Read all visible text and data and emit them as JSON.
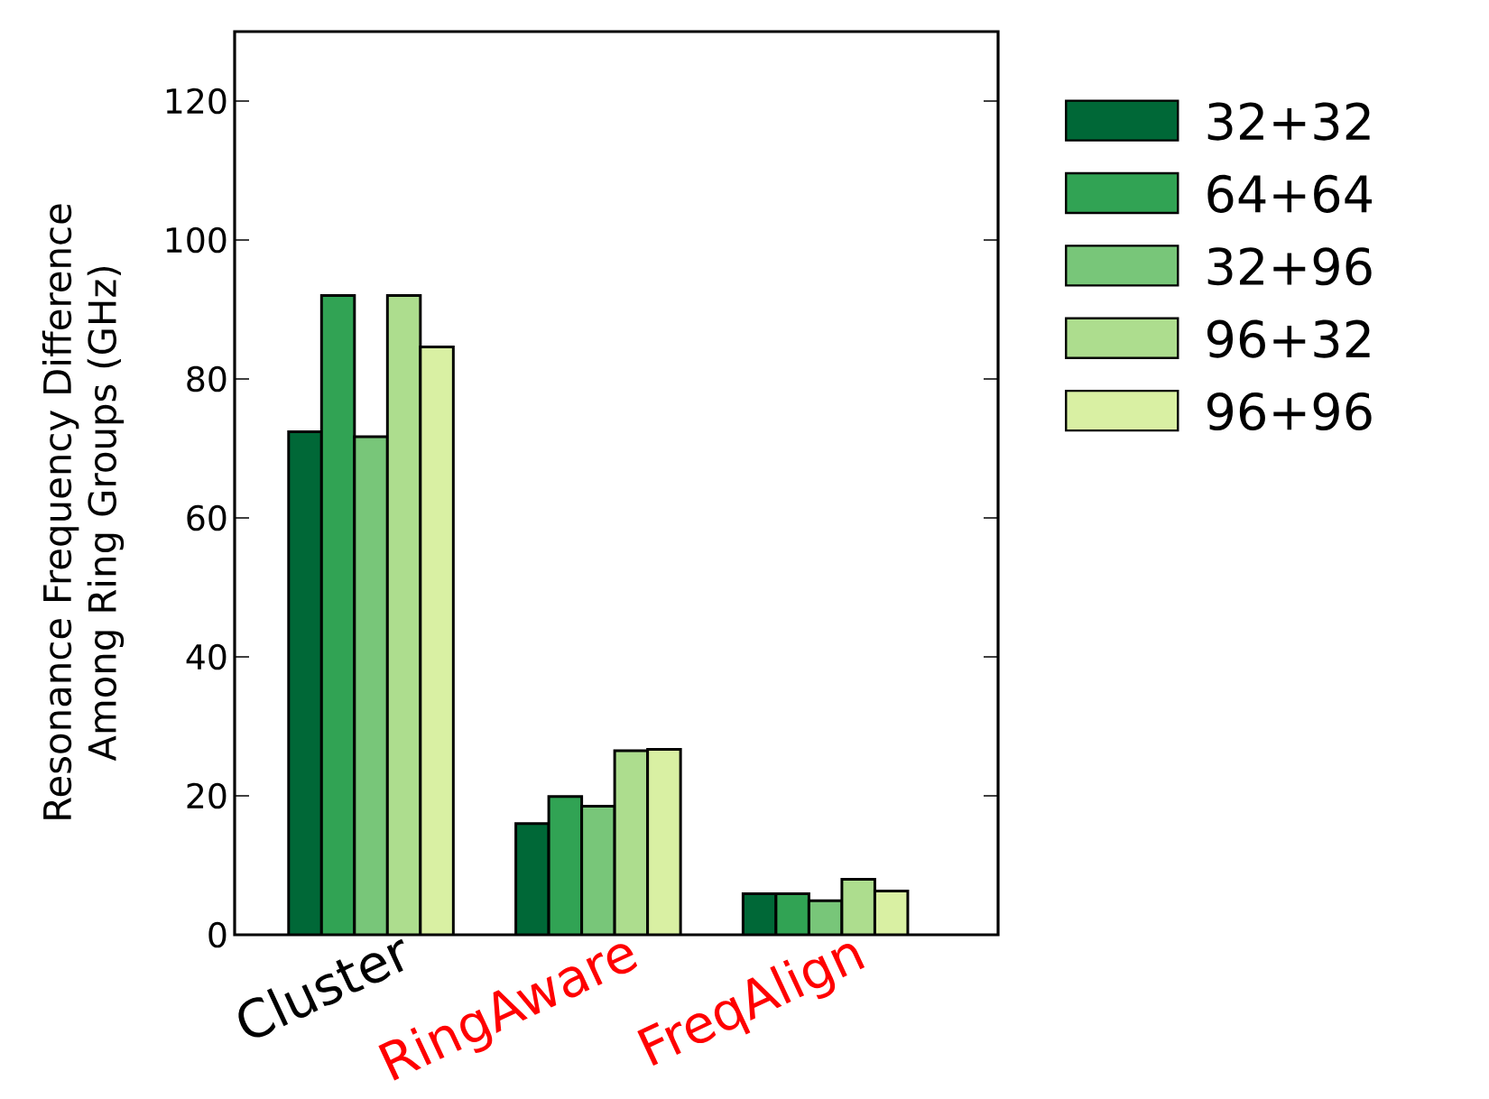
{
  "chart_data": {
    "type": "bar",
    "ylabel": "Resonance Frequency Difference Among Ring Groups (GHz)",
    "categories": [
      "Cluster",
      "RingAware",
      "FreqAlign"
    ],
    "series": [
      {
        "name": "32+32",
        "color": "#006837",
        "values": [
          72.4,
          16.0,
          5.9
        ]
      },
      {
        "name": "64+64",
        "color": "#31a354",
        "values": [
          92.0,
          19.9,
          5.9
        ]
      },
      {
        "name": "32+96",
        "color": "#78c679",
        "values": [
          71.7,
          18.5,
          4.9
        ]
      },
      {
        "name": "96+32",
        "color": "#addd8e",
        "values": [
          92.0,
          26.5,
          8.0
        ]
      },
      {
        "name": "96+96",
        "color": "#d9f0a3",
        "values": [
          84.6,
          26.7,
          6.3
        ]
      }
    ],
    "ylim": [
      0,
      130
    ],
    "yticks": [
      0,
      20,
      40,
      60,
      80,
      100,
      120
    ],
    "grid": false,
    "legend": "right"
  }
}
